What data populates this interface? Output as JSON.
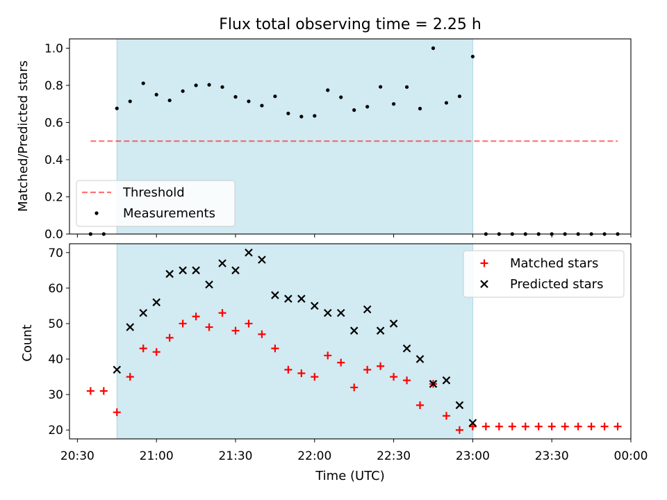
{
  "figure": {
    "title": "Flux total observing time = 2.25 h"
  },
  "colors": {
    "shade": "#add8e6",
    "threshold": "#ff0000",
    "matched": "#ff0000",
    "predicted": "#000000",
    "measurement": "#000000"
  },
  "chart_data": [
    {
      "type": "scatter",
      "panel": "top",
      "title": "Flux total observing time = 2.25 h",
      "ylabel": "Matched/Predicted stars",
      "xlim": [
        "20:27",
        "00:00"
      ],
      "ylim": [
        0,
        1.05
      ],
      "yticks": [
        "0.0",
        "0.2",
        "0.4",
        "0.6",
        "0.8",
        "1.0"
      ],
      "shaded_span": [
        "20:45",
        "23:00"
      ],
      "legend_position": "lower-left",
      "threshold": {
        "name": "Threshold",
        "value": 0.5,
        "x_range": [
          "20:35",
          "23:55"
        ],
        "style": "dashed"
      },
      "series": [
        {
          "name": "Measurements",
          "x": [
            "20:35",
            "20:40",
            "20:45",
            "20:50",
            "20:55",
            "21:00",
            "21:05",
            "21:10",
            "21:15",
            "21:20",
            "21:25",
            "21:30",
            "21:35",
            "21:40",
            "21:45",
            "21:50",
            "21:55",
            "22:00",
            "22:05",
            "22:10",
            "22:15",
            "22:20",
            "22:25",
            "22:30",
            "22:35",
            "22:40",
            "22:45",
            "22:50",
            "22:55",
            "23:00",
            "23:05",
            "23:10",
            "23:15",
            "23:20",
            "23:25",
            "23:30",
            "23:35",
            "23:40",
            "23:45",
            "23:50",
            "23:55"
          ],
          "y": [
            0,
            0,
            0.676,
            0.714,
            0.811,
            0.75,
            0.719,
            0.769,
            0.8,
            0.803,
            0.791,
            0.738,
            0.714,
            0.691,
            0.741,
            0.649,
            0.632,
            0.636,
            0.774,
            0.736,
            0.667,
            0.685,
            0.792,
            0.7,
            0.791,
            0.675,
            1.0,
            0.706,
            0.741,
            0.955,
            0,
            0,
            0,
            0,
            0,
            0,
            0,
            0,
            0,
            0,
            0
          ]
        }
      ]
    },
    {
      "type": "scatter",
      "panel": "bottom",
      "xlabel": "Time (UTC)",
      "ylabel": "Count",
      "xlim": [
        "20:27",
        "00:00"
      ],
      "ylim": [
        17.5,
        72.5
      ],
      "yticks": [
        "20",
        "30",
        "40",
        "50",
        "60",
        "70"
      ],
      "xticks": [
        "20:30",
        "21:00",
        "21:30",
        "22:00",
        "22:30",
        "23:00",
        "23:30",
        "00:00"
      ],
      "shaded_span": [
        "20:45",
        "23:00"
      ],
      "legend_position": "upper-right",
      "series": [
        {
          "name": "Matched stars",
          "marker": "+",
          "x": [
            "20:35",
            "20:40",
            "20:45",
            "20:50",
            "20:55",
            "21:00",
            "21:05",
            "21:10",
            "21:15",
            "21:20",
            "21:25",
            "21:30",
            "21:35",
            "21:40",
            "21:45",
            "21:50",
            "21:55",
            "22:00",
            "22:05",
            "22:10",
            "22:15",
            "22:20",
            "22:25",
            "22:30",
            "22:35",
            "22:40",
            "22:45",
            "22:50",
            "22:55",
            "23:00",
            "23:05",
            "23:10",
            "23:15",
            "23:20",
            "23:25",
            "23:30",
            "23:35",
            "23:40",
            "23:45",
            "23:50",
            "23:55"
          ],
          "y": [
            31,
            31,
            25,
            35,
            43,
            42,
            46,
            50,
            52,
            49,
            53,
            48,
            50,
            47,
            43,
            37,
            36,
            35,
            41,
            39,
            32,
            37,
            38,
            35,
            34,
            27,
            33,
            24,
            20,
            21,
            21,
            21,
            21,
            21,
            21,
            21,
            21,
            21,
            21,
            21,
            21
          ]
        },
        {
          "name": "Predicted stars",
          "marker": "x",
          "x": [
            "20:45",
            "20:50",
            "20:55",
            "21:00",
            "21:05",
            "21:10",
            "21:15",
            "21:20",
            "21:25",
            "21:30",
            "21:35",
            "21:40",
            "21:45",
            "21:50",
            "21:55",
            "22:00",
            "22:05",
            "22:10",
            "22:15",
            "22:20",
            "22:25",
            "22:30",
            "22:35",
            "22:40",
            "22:45",
            "22:50",
            "22:55",
            "23:00"
          ],
          "y": [
            37,
            49,
            53,
            56,
            64,
            65,
            65,
            61,
            67,
            65,
            70,
            68,
            58,
            57,
            57,
            55,
            53,
            53,
            48,
            54,
            48,
            50,
            43,
            40,
            33,
            34,
            27,
            22
          ]
        }
      ]
    }
  ]
}
